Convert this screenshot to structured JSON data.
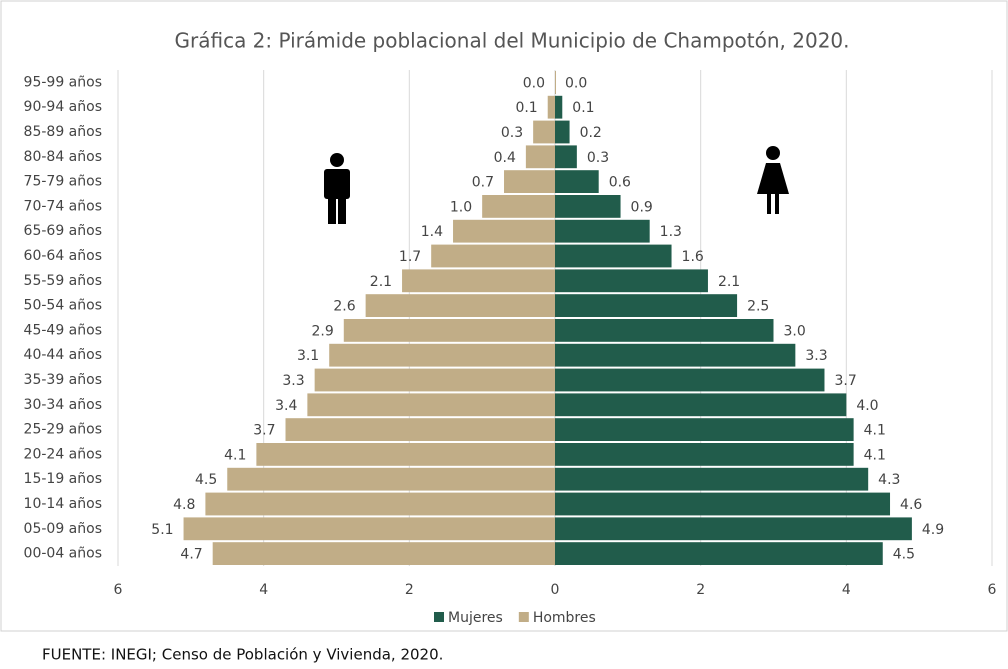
{
  "chart_data": {
    "type": "pyramid",
    "title": "Gráfica 2: Pirámide poblacional del Municipio de Champotón, 2020.",
    "categories": [
      "95-99 años",
      "90-94 años",
      "85-89 años",
      "80-84 años",
      "75-79 años",
      "70-74 años",
      "65-69 años",
      "60-64 años",
      "55-59 años",
      "50-54 años",
      "45-49 años",
      "40-44 años",
      "35-39 años",
      "30-34 años",
      "25-29 años",
      "20-24 años",
      "15-19 años",
      "10-14 años",
      "05-09 años",
      "00-04 años"
    ],
    "series": [
      {
        "name": "Mujeres",
        "color": "#215c4b",
        "values": [
          0,
          0.1,
          0.2,
          0.3,
          0.6,
          0.9,
          1.3,
          1.6,
          2.1,
          2.5,
          3,
          3.3,
          3.7,
          4,
          4.1,
          4.1,
          4.3,
          4.6,
          4.9,
          4.5
        ],
        "value_labels": [
          "0.0",
          "0.1",
          "0.2",
          "0.3",
          "0.6",
          "0.9",
          "1.3",
          "1.6",
          "2.1",
          "2.5",
          "3.0",
          "3.3",
          "3.7",
          "4.0",
          "4.1",
          "4.1",
          "4.3",
          "4.6",
          "4.9",
          "4.5"
        ]
      },
      {
        "name": "Hombres",
        "color": "#c1ad87",
        "values": [
          0,
          -0.1,
          -0.3,
          -0.4,
          -0.7,
          -1,
          -1.4,
          -1.7,
          -2.1,
          -2.6,
          -2.9,
          -3.1,
          -3.3,
          -3.4,
          -3.7,
          -4.1,
          -4.5,
          -4.8,
          -5.1,
          -4.7
        ],
        "value_labels": [
          "0.0",
          "0.1",
          "0.3",
          "0.4",
          "0.7",
          "1.0",
          "1.4",
          "1.7",
          "2.1",
          "2.6",
          "2.9",
          "3.1",
          "3.3",
          "3.4",
          "3.7",
          "4.1",
          "4.5",
          "4.8",
          "5.1",
          "4.7"
        ]
      }
    ],
    "xlim": [
      -6,
      6
    ],
    "xticks": [
      {
        "value": -6,
        "label": "6"
      },
      {
        "value": -4,
        "label": "4"
      },
      {
        "value": -2,
        "label": "2"
      },
      0,
      2,
      4,
      6
    ],
    "grid": true,
    "legend": "bottom",
    "source": "FUENTE: INEGI; Censo de Población y Vivienda, 2020."
  }
}
